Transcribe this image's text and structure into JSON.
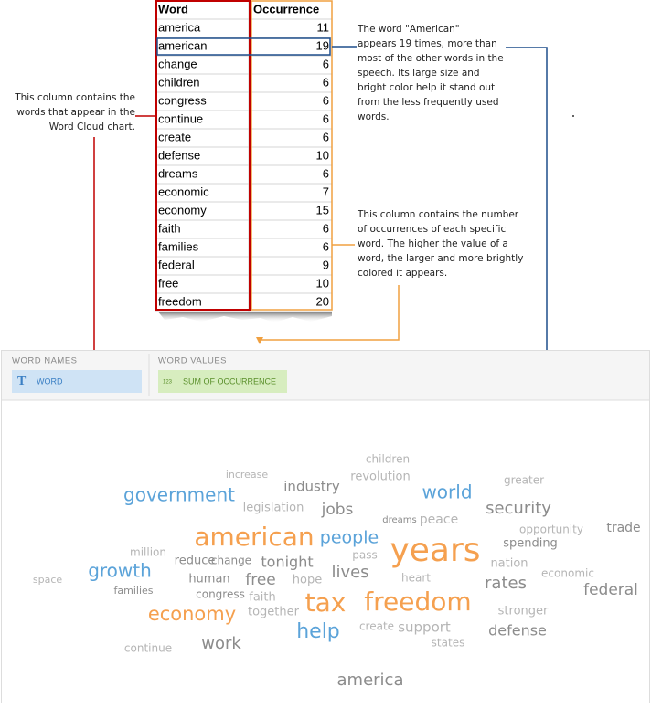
{
  "table": {
    "headers": [
      "Word",
      "Occurrence"
    ],
    "rows": [
      [
        "america",
        11
      ],
      [
        "american",
        19
      ],
      [
        "change",
        6
      ],
      [
        "children",
        6
      ],
      [
        "congress",
        6
      ],
      [
        "continue",
        6
      ],
      [
        "create",
        6
      ],
      [
        "defense",
        10
      ],
      [
        "dreams",
        6
      ],
      [
        "economic",
        7
      ],
      [
        "economy",
        15
      ],
      [
        "faith",
        6
      ],
      [
        "families",
        6
      ],
      [
        "federal",
        9
      ],
      [
        "free",
        10
      ],
      [
        "freedom",
        20
      ]
    ]
  },
  "annotations": {
    "word_column": [
      "This column contains the",
      "words that appear in the",
      "Word Cloud chart."
    ],
    "american_note": [
      "The word \"American\"",
      "appears 19 times, more than",
      "most of the other words in the",
      "speech. Its large size and",
      "bright color help it stand out",
      "from the less frequently used",
      "words."
    ],
    "occurrence_note": [
      "This column contains the number",
      "of occurrences of each specific",
      "word. The higher the value of a",
      "word, the larger and more brightly",
      "colored it appears."
    ]
  },
  "panel": {
    "word_names_label": "WORD NAMES",
    "word_chip_icon": "T",
    "word_chip": "WORD",
    "word_values_label": "WORD VALUES",
    "values_chip_icon": "123",
    "values_chip": "SUM OF OCCURRENCE"
  },
  "word_cloud": {
    "words": [
      "children",
      "increase",
      "industry",
      "revolution",
      "greater",
      "government",
      "world",
      "legislation",
      "jobs",
      "dreams",
      "peace",
      "security",
      "opportunity",
      "trade",
      "american",
      "people",
      "years",
      "spending",
      "million",
      "pass",
      "reduce",
      "change",
      "tonight",
      "nation",
      "growth",
      "lives",
      "economic",
      "space",
      "human",
      "free",
      "hope",
      "heart",
      "rates",
      "families",
      "congress",
      "faith",
      "federal",
      "tax",
      "freedom",
      "economy",
      "together",
      "stronger",
      "help",
      "create",
      "support",
      "defense",
      "states",
      "work",
      "continue",
      "america"
    ]
  }
}
